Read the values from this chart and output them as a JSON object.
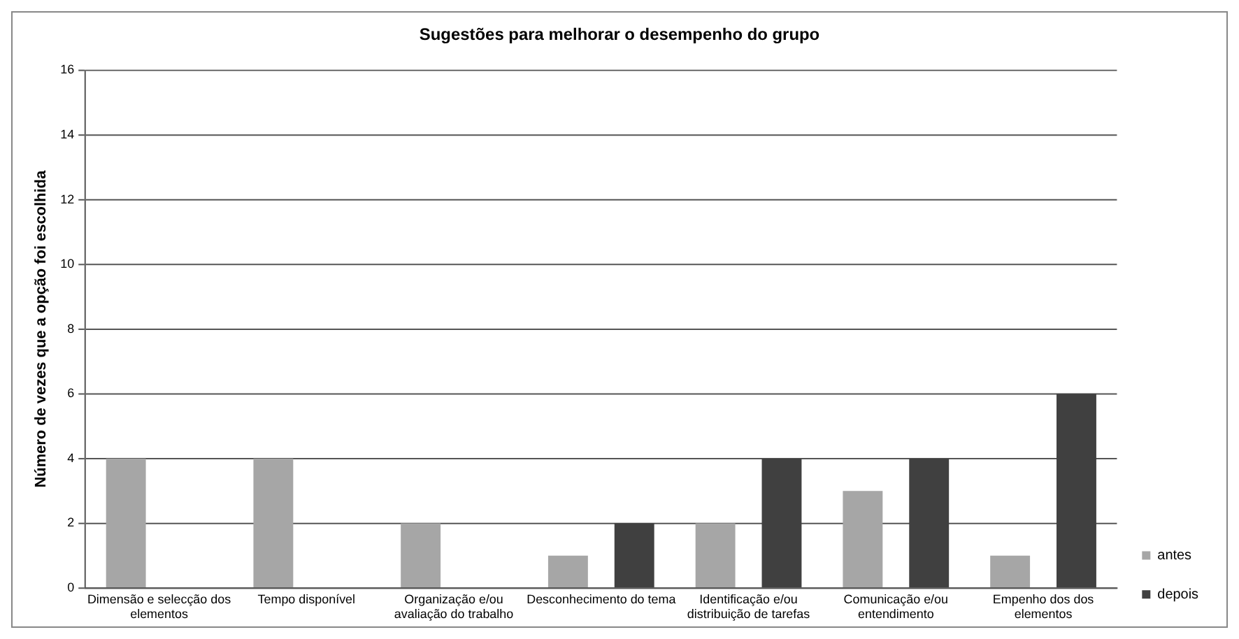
{
  "chart_data": {
    "type": "bar",
    "title": "Sugestões para melhorar o desempenho do grupo",
    "ylabel": "Número de vezes que a opção foi escolhida",
    "categories": [
      "Dimensão e selecção dos elementos",
      "Tempo disponível",
      "Organização e/ou avaliação do trabalho",
      "Desconhecimento do tema",
      "Identificação e/ou distribuição de tarefas",
      "Comunicação e/ou entendimento",
      "Empenho dos dos elementos"
    ],
    "series": [
      {
        "name": "antes",
        "color": "#a6a6a6",
        "values": [
          4,
          4,
          2,
          1,
          2,
          3,
          1
        ]
      },
      {
        "name": "depois",
        "color": "#404040",
        "values": [
          0,
          0,
          0,
          2,
          4,
          4,
          6
        ]
      }
    ],
    "ylim": [
      0,
      16
    ],
    "yticks": [
      0,
      2,
      4,
      6,
      8,
      10,
      12,
      14,
      16
    ],
    "grid": "y",
    "legend": "right"
  }
}
